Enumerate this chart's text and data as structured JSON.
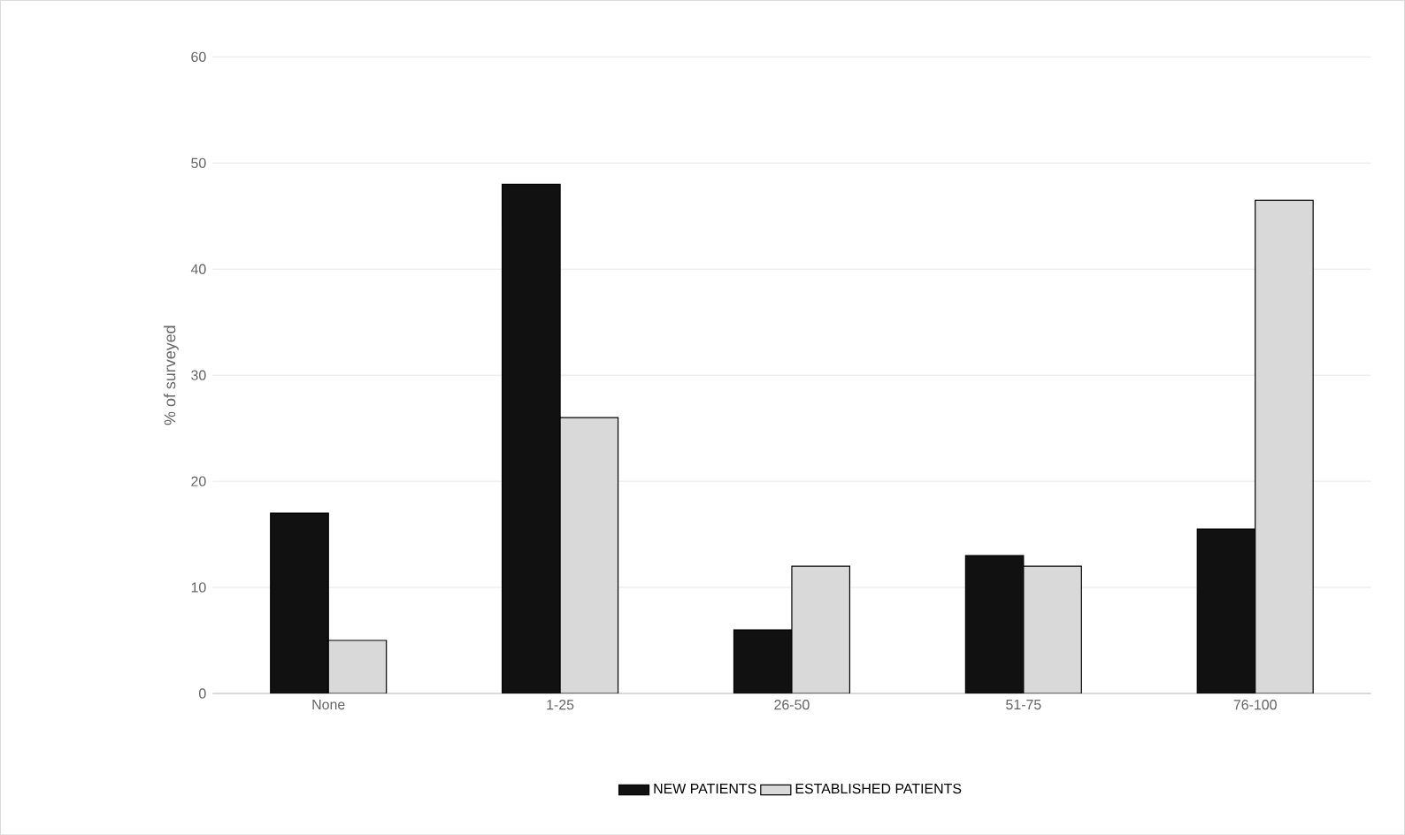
{
  "chart_data": {
    "type": "bar",
    "ylabel": "% of surveyed",
    "categories": [
      "None",
      "1-25",
      "26-50",
      "51-75",
      "76-100"
    ],
    "series": [
      {
        "name": "NEW PATIENTS",
        "color": "#111111",
        "values": [
          17,
          48,
          6,
          13,
          15.5
        ]
      },
      {
        "name": "ESTABLISHED PATIENTS",
        "color": "#d9d9d9",
        "values": [
          5,
          26,
          12,
          12,
          46.5
        ]
      }
    ],
    "ylim": [
      0,
      60
    ],
    "yticks": [
      0,
      10,
      20,
      30,
      40,
      50,
      60
    ],
    "grid": "y",
    "legend": "bottom"
  }
}
